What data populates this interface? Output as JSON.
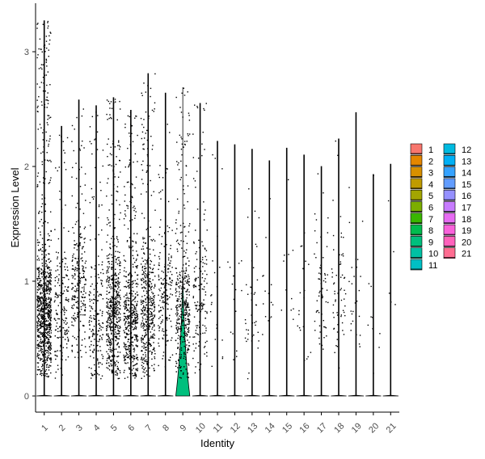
{
  "chart_data": {
    "type": "violin",
    "title": "",
    "xlabel": "Identity",
    "ylabel": "Expression Level",
    "categories": [
      "1",
      "2",
      "3",
      "4",
      "5",
      "6",
      "7",
      "8",
      "9",
      "10",
      "11",
      "12",
      "13",
      "14",
      "15",
      "16",
      "17",
      "18",
      "19",
      "20",
      "21"
    ],
    "ylim": [
      -0.18,
      3.4
    ],
    "yticks": [
      0,
      1,
      2,
      3
    ],
    "colors": [
      "#F8766D",
      "#E58700",
      "#D89000",
      "#C09B00",
      "#A3A500",
      "#7CAE00",
      "#39B600",
      "#00BB4E",
      "#00BF7D",
      "#00C1A3",
      "#00BFC4",
      "#00BAE0",
      "#00B0F6",
      "#35A2FF",
      "#619CFF",
      "#9590FF",
      "#C77CFF",
      "#E76BF3",
      "#FA62DB",
      "#FF62BC",
      "#FF6C91"
    ],
    "max_values": [
      3.27,
      2.35,
      2.58,
      2.53,
      2.6,
      2.49,
      2.81,
      2.64,
      2.69,
      2.55,
      2.22,
      2.19,
      2.15,
      2.05,
      2.16,
      2.1,
      2.0,
      2.24,
      2.47,
      1.93,
      2.02
    ],
    "points_per_group": [
      900,
      180,
      250,
      200,
      550,
      480,
      450,
      180,
      400,
      150,
      20,
      15,
      40,
      15,
      12,
      20,
      60,
      60,
      25,
      10,
      5
    ],
    "center_values": [
      0.7,
      0.8,
      1.0,
      0.6,
      0.7,
      0.65,
      0.7,
      0.9,
      0.7,
      0.8,
      0.7,
      0.7,
      0.7,
      0.9,
      0.8,
      0.8,
      0.9,
      0.9,
      0.8,
      0.9,
      0.7
    ],
    "highlighted_violin": {
      "category": "9",
      "peak_density_at": 0.0,
      "width_fraction": 0.9
    },
    "legend": {
      "position": "right",
      "items": [
        "1",
        "2",
        "3",
        "4",
        "5",
        "6",
        "7",
        "8",
        "9",
        "10",
        "11",
        "12",
        "13",
        "14",
        "15",
        "16",
        "17",
        "18",
        "19",
        "20",
        "21"
      ]
    },
    "grid": false
  }
}
